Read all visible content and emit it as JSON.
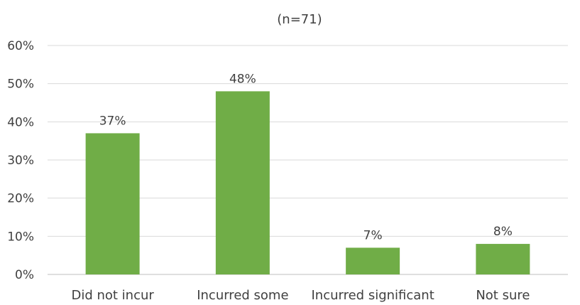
{
  "chart_data": {
    "type": "bar",
    "title": "(n=71)",
    "categories": [
      "Did not incur",
      "Incurred some",
      "Incurred significant",
      "Not sure"
    ],
    "values": [
      37,
      48,
      7,
      8
    ],
    "value_labels": [
      "37%",
      "48%",
      "7%",
      "8%"
    ],
    "ylim": [
      0,
      60
    ],
    "yticks": [
      0,
      10,
      20,
      30,
      40,
      50,
      60
    ],
    "ytick_labels": [
      "0%",
      "10%",
      "20%",
      "30%",
      "40%",
      "50%",
      "60%"
    ],
    "grid": true,
    "legend": "none",
    "bar_color": "#70ad47"
  }
}
